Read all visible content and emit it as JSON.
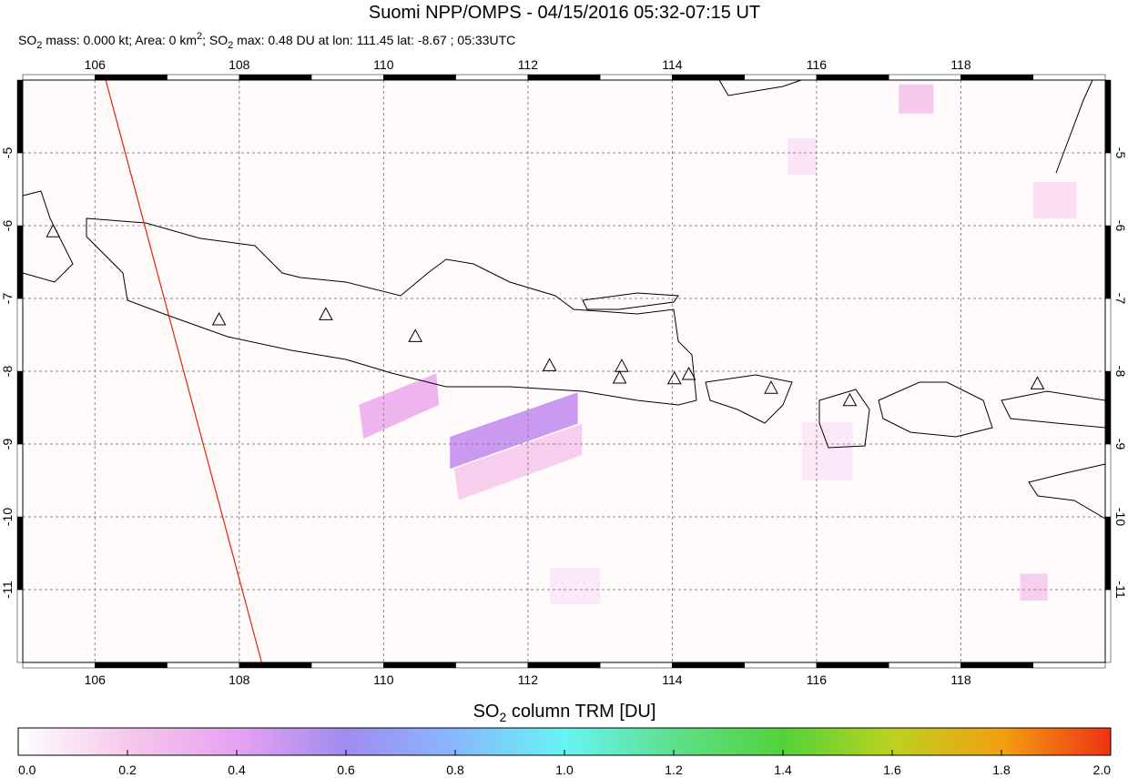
{
  "header": {
    "title": "Suomi NPP/OMPS - 04/15/2016 05:32-07:15 UT",
    "subtitle_parts": [
      "SO",
      "2",
      " mass: 0.000 kt; Area: 0 km",
      "2",
      "; SO",
      "2",
      " max: 0.48 DU at lon: 111.45 lat: -8.67 ; 05:33UTC"
    ]
  },
  "map": {
    "xlim": [
      105,
      120
    ],
    "ylim": [
      -12,
      -4
    ],
    "xticks": [
      106,
      108,
      110,
      112,
      114,
      116,
      118
    ],
    "yticks": [
      -5,
      -6,
      -7,
      -8,
      -9,
      -10,
      -11
    ],
    "grid": true,
    "volcanoes": [
      [
        105.42,
        -6.09
      ],
      [
        107.72,
        -7.3
      ],
      [
        109.2,
        -7.23
      ],
      [
        110.44,
        -7.53
      ],
      [
        112.3,
        -7.93
      ],
      [
        113.3,
        -7.94
      ],
      [
        113.27,
        -8.1
      ],
      [
        114.03,
        -8.11
      ],
      [
        114.23,
        -8.05
      ],
      [
        115.37,
        -8.24
      ],
      [
        116.46,
        -8.41
      ],
      [
        119.06,
        -8.18
      ]
    ],
    "orbit_edge": {
      "color": "#e02010",
      "lon": [
        106.15,
        108.31
      ],
      "lat": [
        -4,
        -12
      ]
    },
    "cells": [
      {
        "lon": [
          110.92,
          112.69,
          112.69,
          110.92
        ],
        "lat": [
          -8.9,
          -8.29,
          -8.72,
          -9.34
        ],
        "value": 0.48
      },
      {
        "lon": [
          109.66,
          110.73,
          110.77,
          109.72
        ],
        "lat": [
          -8.46,
          -8.03,
          -8.46,
          -8.93
        ],
        "value": 0.3
      },
      {
        "lon": [
          110.98,
          112.75,
          112.75,
          111.04
        ],
        "lat": [
          -9.34,
          -8.72,
          -9.15,
          -9.77
        ],
        "value": 0.18
      },
      {
        "lon": [
          117.14,
          117.62,
          117.62,
          117.14
        ],
        "lat": [
          -4.06,
          -4.06,
          -4.46,
          -4.46
        ],
        "value": 0.2
      },
      {
        "lon": [
          118.82,
          119.2,
          119.2,
          118.82
        ],
        "lat": [
          -10.78,
          -10.78,
          -11.15,
          -11.15
        ],
        "value": 0.18
      },
      {
        "lon": [
          115.6,
          116.0,
          116.0,
          115.6
        ],
        "lat": [
          -4.8,
          -4.8,
          -5.3,
          -5.3
        ],
        "value": 0.1
      },
      {
        "lon": [
          119.0,
          119.6,
          119.6,
          119.0
        ],
        "lat": [
          -5.4,
          -5.4,
          -5.9,
          -5.9
        ],
        "value": 0.12
      },
      {
        "lon": [
          115.8,
          116.5,
          116.5,
          115.8
        ],
        "lat": [
          -8.7,
          -8.7,
          -9.5,
          -9.5
        ],
        "value": 0.08
      },
      {
        "lon": [
          112.3,
          113.0,
          113.0,
          112.3
        ],
        "lat": [
          -10.7,
          -10.7,
          -11.2,
          -11.2
        ],
        "value": 0.08
      }
    ]
  },
  "colorbar": {
    "label_parts": [
      "SO",
      "2",
      " column TRM [DU]"
    ],
    "xlim": [
      0,
      2
    ],
    "ticks": [
      {
        "value": 0,
        "label": "0.0"
      },
      0.2,
      0.4,
      0.6,
      0.8,
      {
        "value": 1,
        "label": "1.0"
      },
      1.2,
      1.4,
      1.6,
      1.8,
      {
        "value": 2,
        "label": "2.0"
      }
    ],
    "colors": [
      "#ffffff",
      "#f6c8ec",
      "#e6a2f0",
      "#a08cf0",
      "#88b8ff",
      "#66f4f4",
      "#5ee08c",
      "#52d23a",
      "#bcd21e",
      "#f2a012",
      "#f03214"
    ]
  }
}
